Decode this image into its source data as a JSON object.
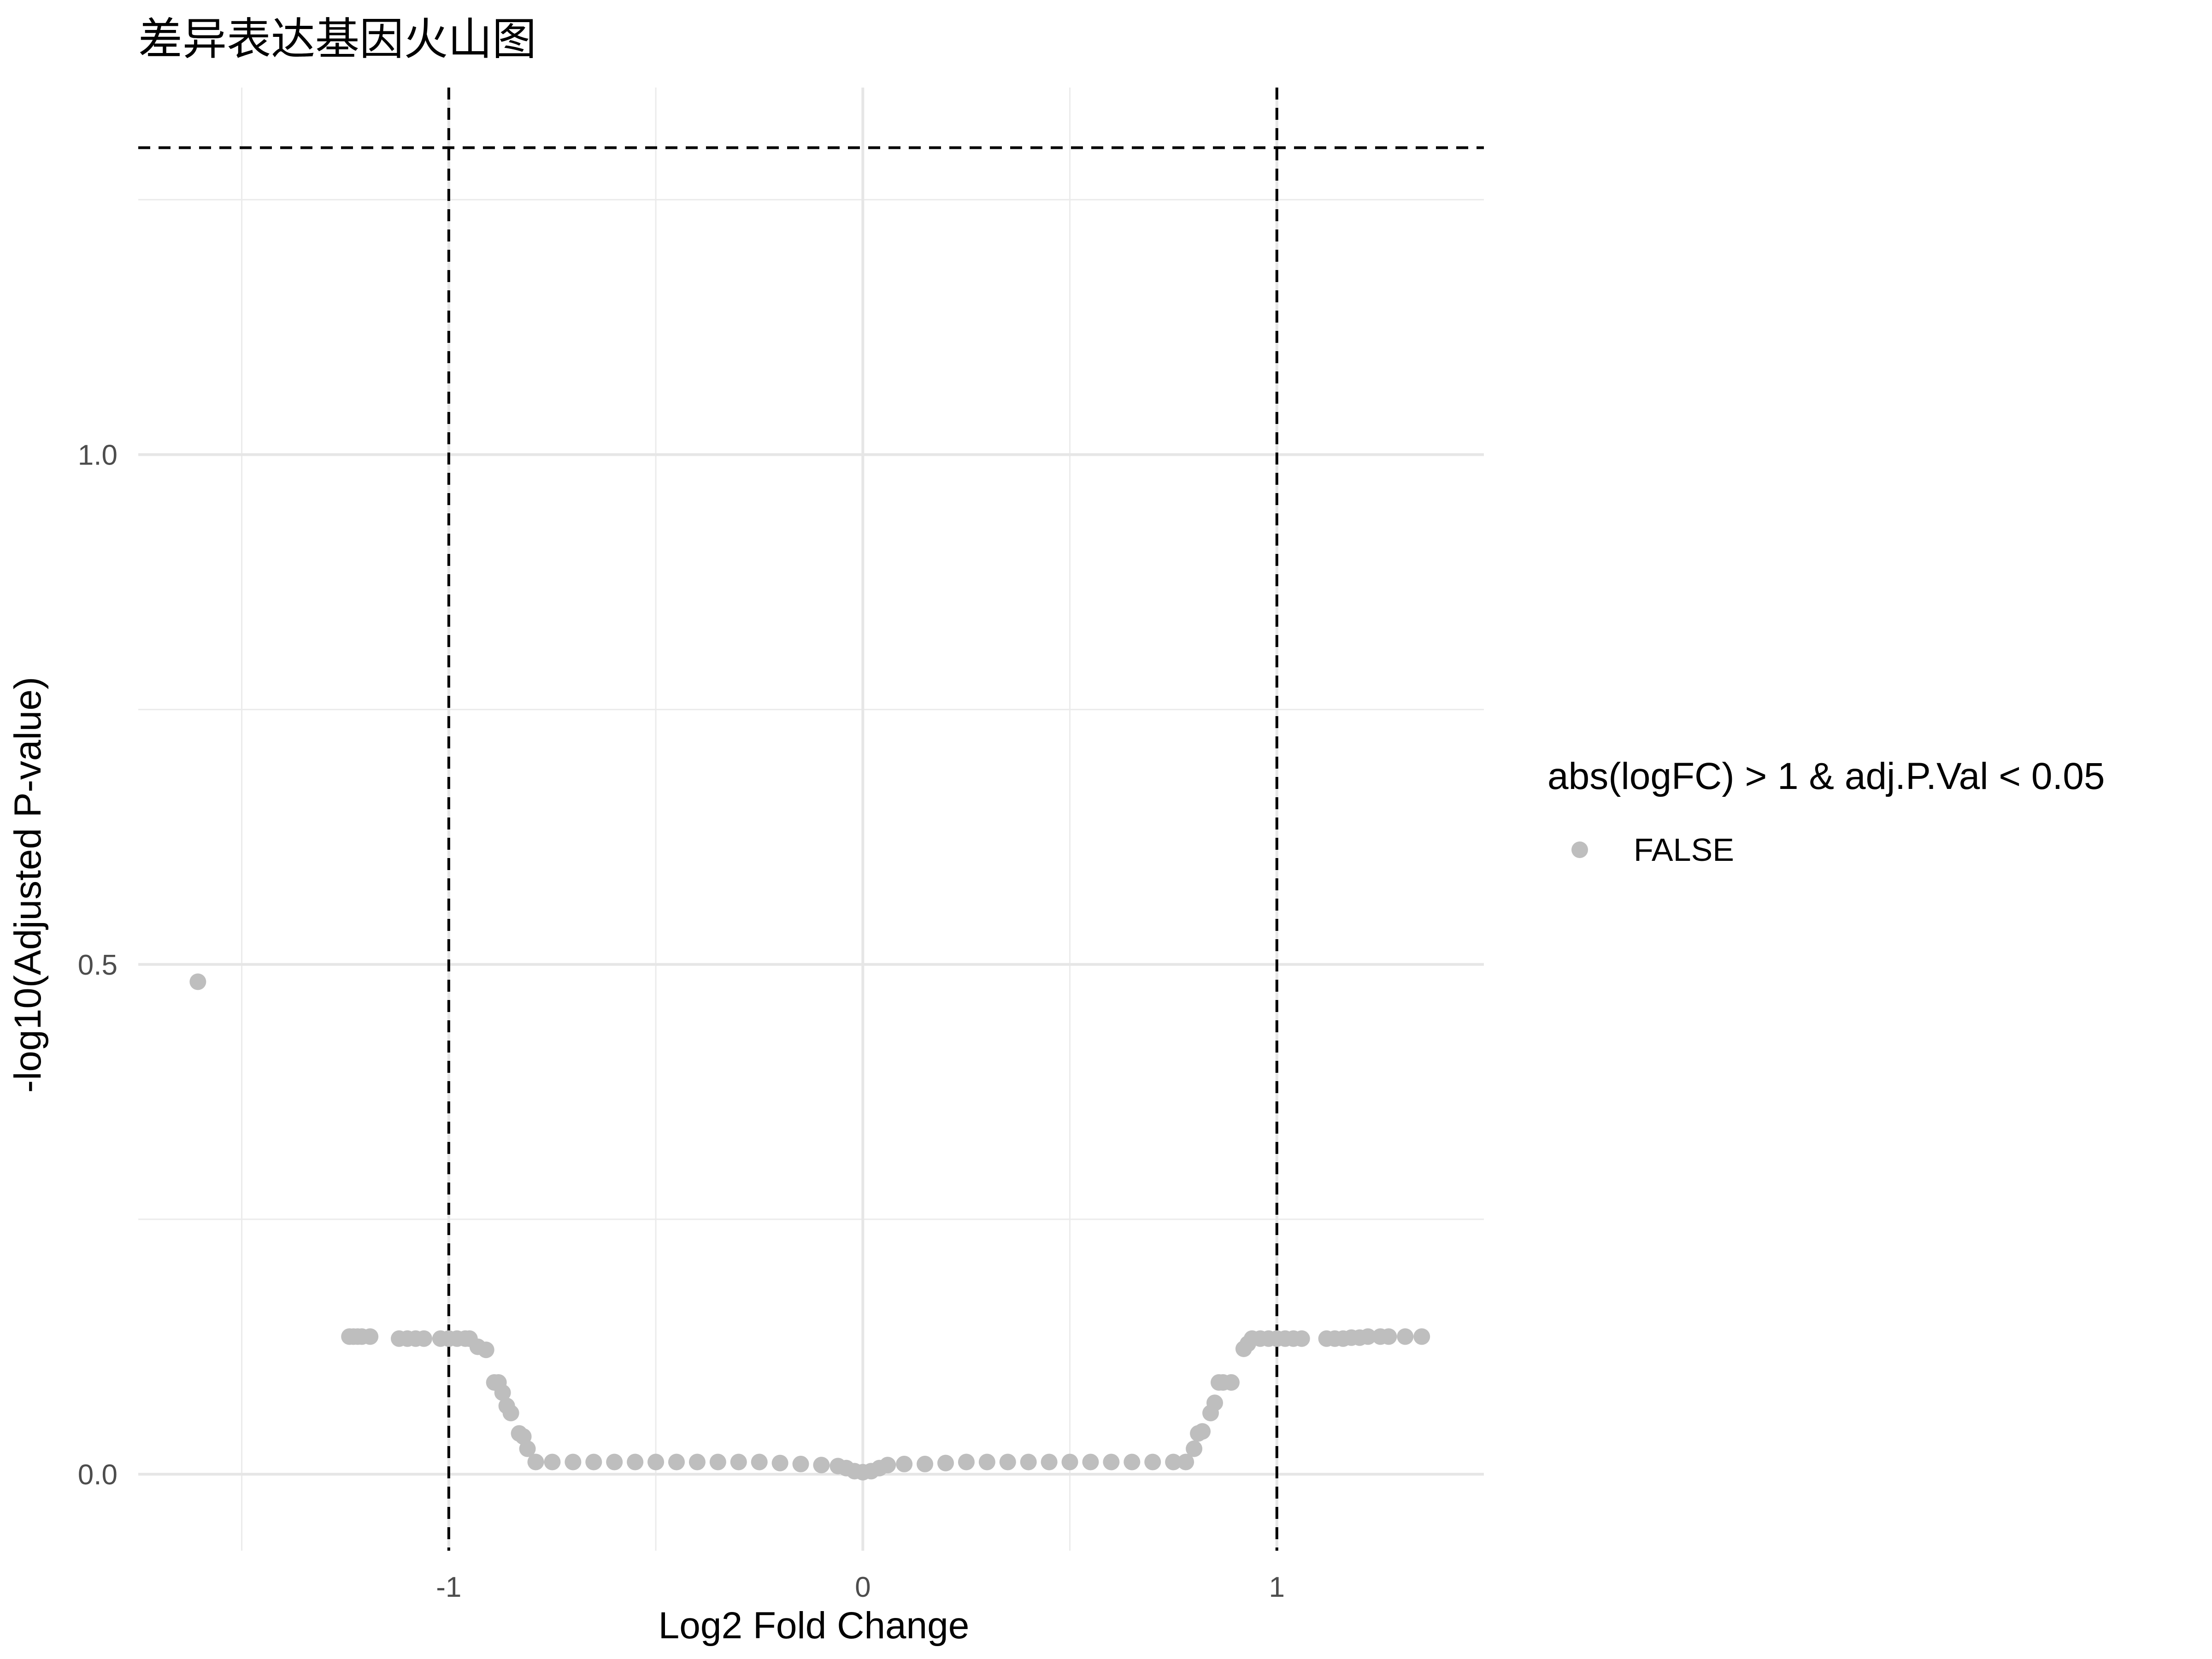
{
  "chart_data": {
    "type": "scatter",
    "title": "差异表达基因火山图",
    "xlabel": "Log2 Fold Change",
    "ylabel": "-log10(Adjusted P-value)",
    "xlim": [
      -1.75,
      1.5
    ],
    "ylim": [
      -0.075,
      1.36
    ],
    "x_ticks": [
      -1,
      0,
      1
    ],
    "x_tick_labels": [
      "-1",
      "0",
      "1"
    ],
    "x_minor_ticks": [
      -1.5,
      -0.5,
      0.5
    ],
    "y_ticks": [
      0.0,
      0.5,
      1.0
    ],
    "y_tick_labels": [
      "0.0",
      "0.5",
      "1.0"
    ],
    "y_minor_ticks": [
      0.25,
      0.75,
      1.25
    ],
    "grid": true,
    "thresholds": {
      "vertical": [
        -1,
        1
      ],
      "horizontal": [
        1.301
      ],
      "line_style": "dashed",
      "line_color": "#000000"
    },
    "legend": {
      "title": "abs(logFC) > 1 & adj.P.Val < 0.05",
      "placement": "right",
      "entries": [
        {
          "label": "FALSE",
          "color": "#bebebe"
        }
      ]
    },
    "series": [
      {
        "name": "FALSE",
        "color": "#bebebe",
        "points": [
          [
            -1.606,
            0.483
          ],
          [
            -1.24,
            0.135
          ],
          [
            -1.23,
            0.135
          ],
          [
            -1.22,
            0.135
          ],
          [
            -1.21,
            0.135
          ],
          [
            -1.19,
            0.135
          ],
          [
            -1.12,
            0.133
          ],
          [
            -1.1,
            0.133
          ],
          [
            -1.08,
            0.133
          ],
          [
            -1.06,
            0.133
          ],
          [
            -1.02,
            0.133
          ],
          [
            -1.0,
            0.133
          ],
          [
            -0.98,
            0.133
          ],
          [
            -0.96,
            0.133
          ],
          [
            -0.95,
            0.133
          ],
          [
            -0.93,
            0.125
          ],
          [
            -0.91,
            0.122
          ],
          [
            -0.89,
            0.09
          ],
          [
            -0.88,
            0.09
          ],
          [
            -0.87,
            0.08
          ],
          [
            -0.86,
            0.067
          ],
          [
            -0.85,
            0.06
          ],
          [
            -0.83,
            0.04
          ],
          [
            -0.82,
            0.037
          ],
          [
            -0.81,
            0.025
          ],
          [
            -0.79,
            0.012
          ],
          [
            -0.75,
            0.012
          ],
          [
            -0.7,
            0.012
          ],
          [
            -0.65,
            0.012
          ],
          [
            -0.6,
            0.012
          ],
          [
            -0.55,
            0.012
          ],
          [
            -0.5,
            0.012
          ],
          [
            -0.45,
            0.012
          ],
          [
            -0.4,
            0.012
          ],
          [
            -0.35,
            0.012
          ],
          [
            -0.3,
            0.012
          ],
          [
            -0.25,
            0.012
          ],
          [
            -0.2,
            0.011
          ],
          [
            -0.15,
            0.01
          ],
          [
            -0.1,
            0.009
          ],
          [
            -0.06,
            0.008
          ],
          [
            -0.04,
            0.006
          ],
          [
            -0.02,
            0.003
          ],
          [
            0.0,
            0.002
          ],
          [
            0.02,
            0.003
          ],
          [
            0.04,
            0.006
          ],
          [
            0.06,
            0.009
          ],
          [
            0.1,
            0.01
          ],
          [
            0.15,
            0.01
          ],
          [
            0.2,
            0.011
          ],
          [
            0.25,
            0.012
          ],
          [
            0.3,
            0.012
          ],
          [
            0.35,
            0.012
          ],
          [
            0.4,
            0.012
          ],
          [
            0.45,
            0.012
          ],
          [
            0.5,
            0.012
          ],
          [
            0.55,
            0.012
          ],
          [
            0.6,
            0.012
          ],
          [
            0.65,
            0.012
          ],
          [
            0.7,
            0.012
          ],
          [
            0.75,
            0.012
          ],
          [
            0.78,
            0.012
          ],
          [
            0.8,
            0.025
          ],
          [
            0.81,
            0.04
          ],
          [
            0.82,
            0.042
          ],
          [
            0.84,
            0.06
          ],
          [
            0.85,
            0.07
          ],
          [
            0.86,
            0.09
          ],
          [
            0.87,
            0.09
          ],
          [
            0.89,
            0.09
          ],
          [
            0.92,
            0.123
          ],
          [
            0.93,
            0.128
          ],
          [
            0.94,
            0.133
          ],
          [
            0.96,
            0.133
          ],
          [
            0.98,
            0.133
          ],
          [
            1.0,
            0.133
          ],
          [
            1.02,
            0.133
          ],
          [
            1.04,
            0.133
          ],
          [
            1.06,
            0.133
          ],
          [
            1.12,
            0.133
          ],
          [
            1.14,
            0.133
          ],
          [
            1.16,
            0.133
          ],
          [
            1.18,
            0.134
          ],
          [
            1.2,
            0.134
          ],
          [
            1.22,
            0.135
          ],
          [
            1.25,
            0.135
          ],
          [
            1.27,
            0.135
          ],
          [
            1.31,
            0.135
          ],
          [
            1.35,
            0.135
          ]
        ]
      }
    ]
  }
}
